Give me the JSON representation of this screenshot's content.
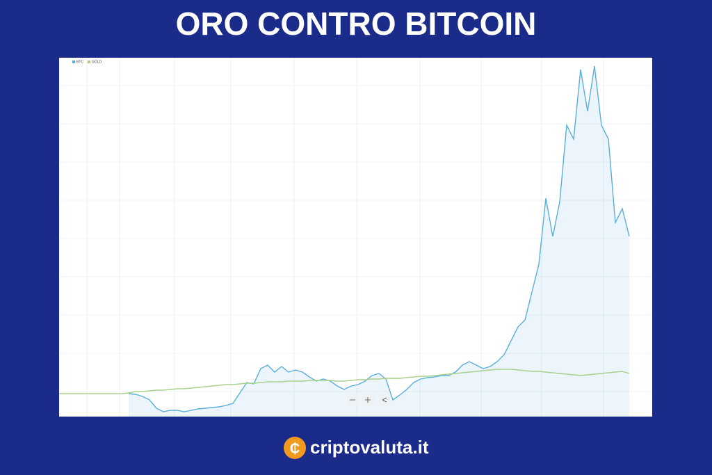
{
  "chart_data": {
    "type": "line",
    "title": "ORO CONTRO BITCOIN",
    "brand": "criptovaluta.it",
    "series": [
      {
        "name": "BTC",
        "color": "#5aaedb",
        "fill": true,
        "values": [
          null,
          null,
          null,
          null,
          null,
          null,
          null,
          null,
          null,
          null,
          33,
          32,
          29,
          24,
          12,
          7,
          9,
          9,
          7,
          9,
          11,
          12,
          13,
          14,
          16,
          19,
          34,
          49,
          47,
          69,
          74,
          64,
          72,
          64,
          67,
          64,
          57,
          51,
          54,
          51,
          44,
          39,
          44,
          46,
          51,
          59,
          62,
          54,
          24,
          31,
          39,
          49,
          54,
          56,
          57,
          59,
          59,
          64,
          74,
          79,
          74,
          69,
          72,
          79,
          89,
          109,
          129,
          139,
          179,
          219,
          314,
          259,
          309,
          419,
          399,
          499,
          439,
          504,
          419,
          399,
          279,
          299,
          259
        ]
      },
      {
        "name": "GOLD",
        "color": "#a8d08d",
        "fill": false,
        "values": [
          33,
          33,
          33,
          33,
          33,
          33,
          33,
          33,
          33,
          33,
          34,
          36,
          36,
          37,
          38,
          38,
          39,
          40,
          40,
          41,
          42,
          43,
          44,
          45,
          46,
          46,
          47,
          48,
          48,
          49,
          50,
          50,
          50,
          51,
          51,
          51,
          52,
          52,
          52,
          52,
          51,
          51,
          52,
          53,
          53,
          54,
          54,
          55,
          55,
          55,
          56,
          57,
          58,
          58,
          59,
          60,
          61,
          62,
          63,
          64,
          65,
          66,
          67,
          68,
          68,
          68,
          67,
          66,
          65,
          65,
          64,
          63,
          62,
          61,
          60,
          59,
          60,
          61,
          62,
          63,
          64,
          65,
          62
        ]
      }
    ]
  }
}
